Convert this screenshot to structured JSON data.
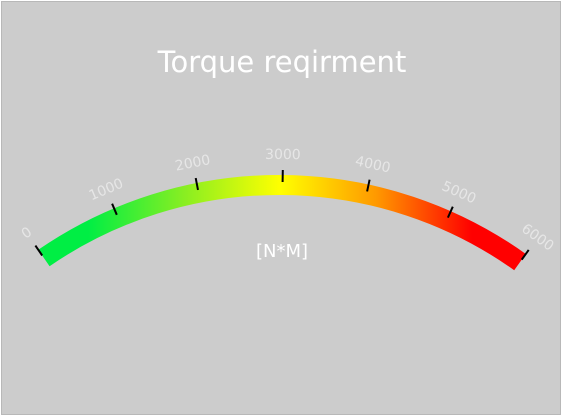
{
  "title": "Torque reqirment",
  "unit": "[N*M]",
  "gauge": {
    "min": 0,
    "max": 6000,
    "tick_labels": [
      "0",
      "1000",
      "2000",
      "3000",
      "4000",
      "5000",
      "6000"
    ],
    "colors": {
      "start": "#00ee44",
      "mid_low": "#88ee22",
      "mid": "#ffff00",
      "mid_high": "#ff9900",
      "end": "#ff0000",
      "background": "#cccccc",
      "tick_label": "#e6e6e6",
      "tick": "#000000"
    }
  }
}
